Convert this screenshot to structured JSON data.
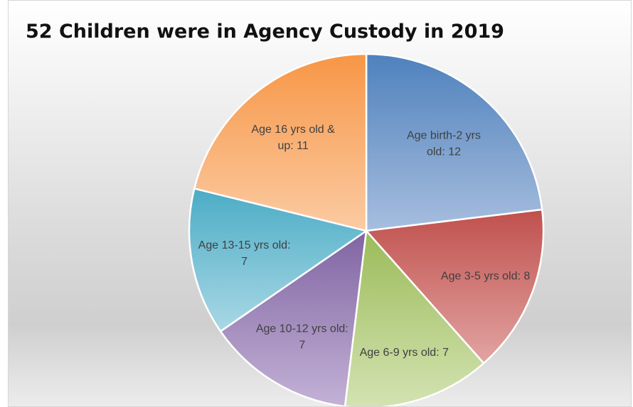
{
  "chart_data": {
    "type": "pie",
    "title": "52 Children were in Agency Custody in 2019",
    "start_angle_deg": 0,
    "direction": "clockwise",
    "slices": [
      {
        "label": "Age birth-2 yrs old",
        "value": 12,
        "display": [
          "Age birth-2 yrs",
          "old:  12"
        ],
        "color": "#4F81BD",
        "light": "#A7BEDE"
      },
      {
        "label": "Age 3-5 yrs old",
        "value": 8,
        "display": [
          "Age 3-5 yrs old:  8"
        ],
        "color": "#C0504D",
        "light": "#E2A4A2"
      },
      {
        "label": "Age 6-9 yrs old",
        "value": 7,
        "display": [
          "Age 6-9 yrs old:  7"
        ],
        "color": "#9BBB59",
        "light": "#D3E3B2"
      },
      {
        "label": "Age 10-12 yrs old",
        "value": 7,
        "display": [
          "Age 10-12 yrs old:",
          "7"
        ],
        "color": "#8064A2",
        "light": "#C3B2D6"
      },
      {
        "label": "Age 13-15 yrs old",
        "value": 7,
        "display": [
          "Age 13-15 yrs old:",
          "7"
        ],
        "color": "#4BACC6",
        "light": "#A9D8E5"
      },
      {
        "label": "Age 16 yrs old & up",
        "value": 11,
        "display": [
          "Age 16 yrs old &",
          "up:  11"
        ],
        "color": "#F79646",
        "light": "#FBCBA3"
      }
    ]
  }
}
